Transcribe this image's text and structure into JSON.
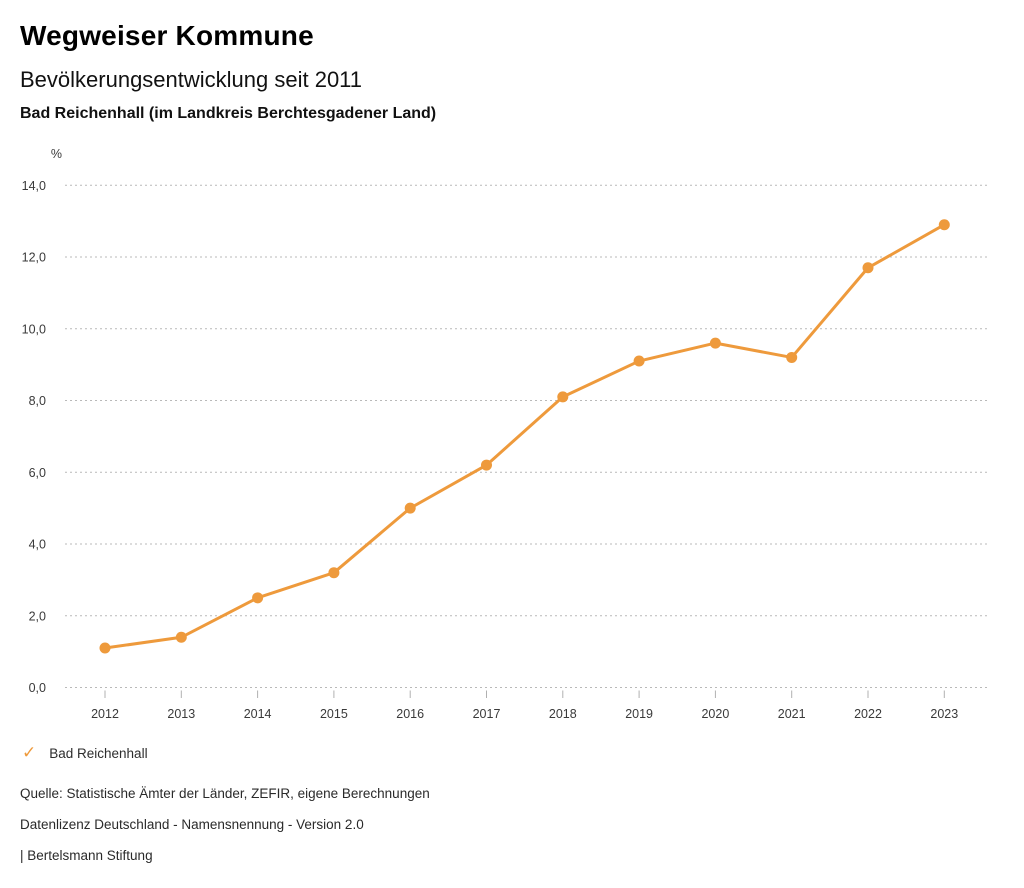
{
  "header": {
    "title": "Wegweiser Kommune",
    "subtitle": "Bevölkerungsentwicklung seit 2011",
    "location": "Bad Reichenhall (im Landkreis Berchtesgadener Land)"
  },
  "chart_data": {
    "type": "line",
    "title": "Bevölkerungsentwicklung seit 2011",
    "subtitle": "Bad Reichenhall (im Landkreis Berchtesgadener Land)",
    "unit_label": "%",
    "categories": [
      "2012",
      "2013",
      "2014",
      "2015",
      "2016",
      "2017",
      "2018",
      "2019",
      "2020",
      "2021",
      "2022",
      "2023"
    ],
    "series": [
      {
        "name": "Bad Reichenhall",
        "values": [
          1.1,
          1.4,
          2.5,
          3.2,
          5.0,
          6.2,
          8.1,
          9.1,
          9.6,
          9.2,
          11.7,
          12.9
        ]
      }
    ],
    "ylim": [
      0,
      14
    ],
    "ytick_step": 2,
    "decimal_separator": ",",
    "grid": "horizontal-dotted",
    "legend_position": "bottom-left",
    "colors": {
      "line": "#ee9a3c",
      "marker": "#ee9a3c",
      "gridline": "#b9b9b9",
      "tick": "#b0b0b0",
      "axis_text": "#3a3a3a"
    }
  },
  "legend": {
    "label": "Bad Reichenhall",
    "check_color": "#ee9a3c"
  },
  "footer": {
    "source": "Quelle: Statistische Ämter der Länder, ZEFIR, eigene Berechnungen",
    "license": "Datenlizenz Deutschland - Namensnennung - Version 2.0",
    "attribution": "| Bertelsmann Stiftung"
  }
}
